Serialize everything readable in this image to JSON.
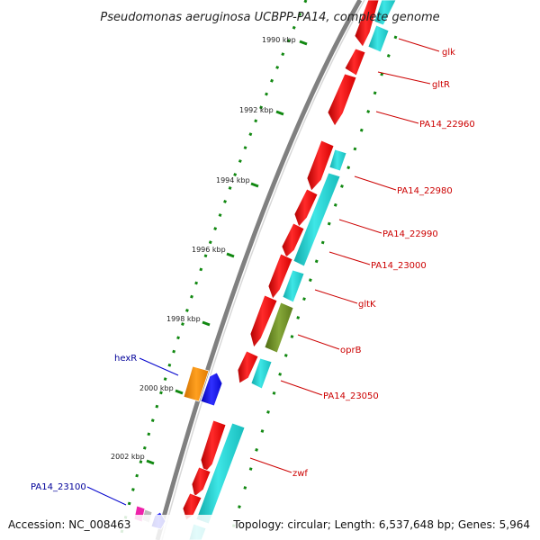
{
  "title": "Pseudomonas aeruginosa UCBPP-PA14, complete genome",
  "footer": {
    "accession": "Accession: NC_008463",
    "summary": "Topology: circular; Length: 6,537,648 bp; Genes: 5,964"
  },
  "scale_labels": [
    "1990 kbp",
    "1992 kbp",
    "1994 kbp",
    "1996 kbp",
    "1998 kbp",
    "2000 kbp",
    "2002 kbp"
  ],
  "gene_labels_right": [
    "glk",
    "gltR",
    "PA14_22960",
    "PA14_22980",
    "PA14_22990",
    "PA14_23000",
    "gltK",
    "oprB",
    "PA14_23050",
    "zwf"
  ],
  "gene_labels_left": [
    "hexR",
    "PA14_23100"
  ],
  "colors": {
    "backbone": "#808080",
    "gene_red": "#ee1111",
    "gene_cyan": "#22cccc",
    "gene_olive": "#6b8e23",
    "gene_orange": "#ff8c00",
    "gene_blue": "#1111ee",
    "gene_magenta": "#ee22aa",
    "tick_green": "#118811",
    "label_red": "#cc0000",
    "label_blue": "#000099"
  }
}
